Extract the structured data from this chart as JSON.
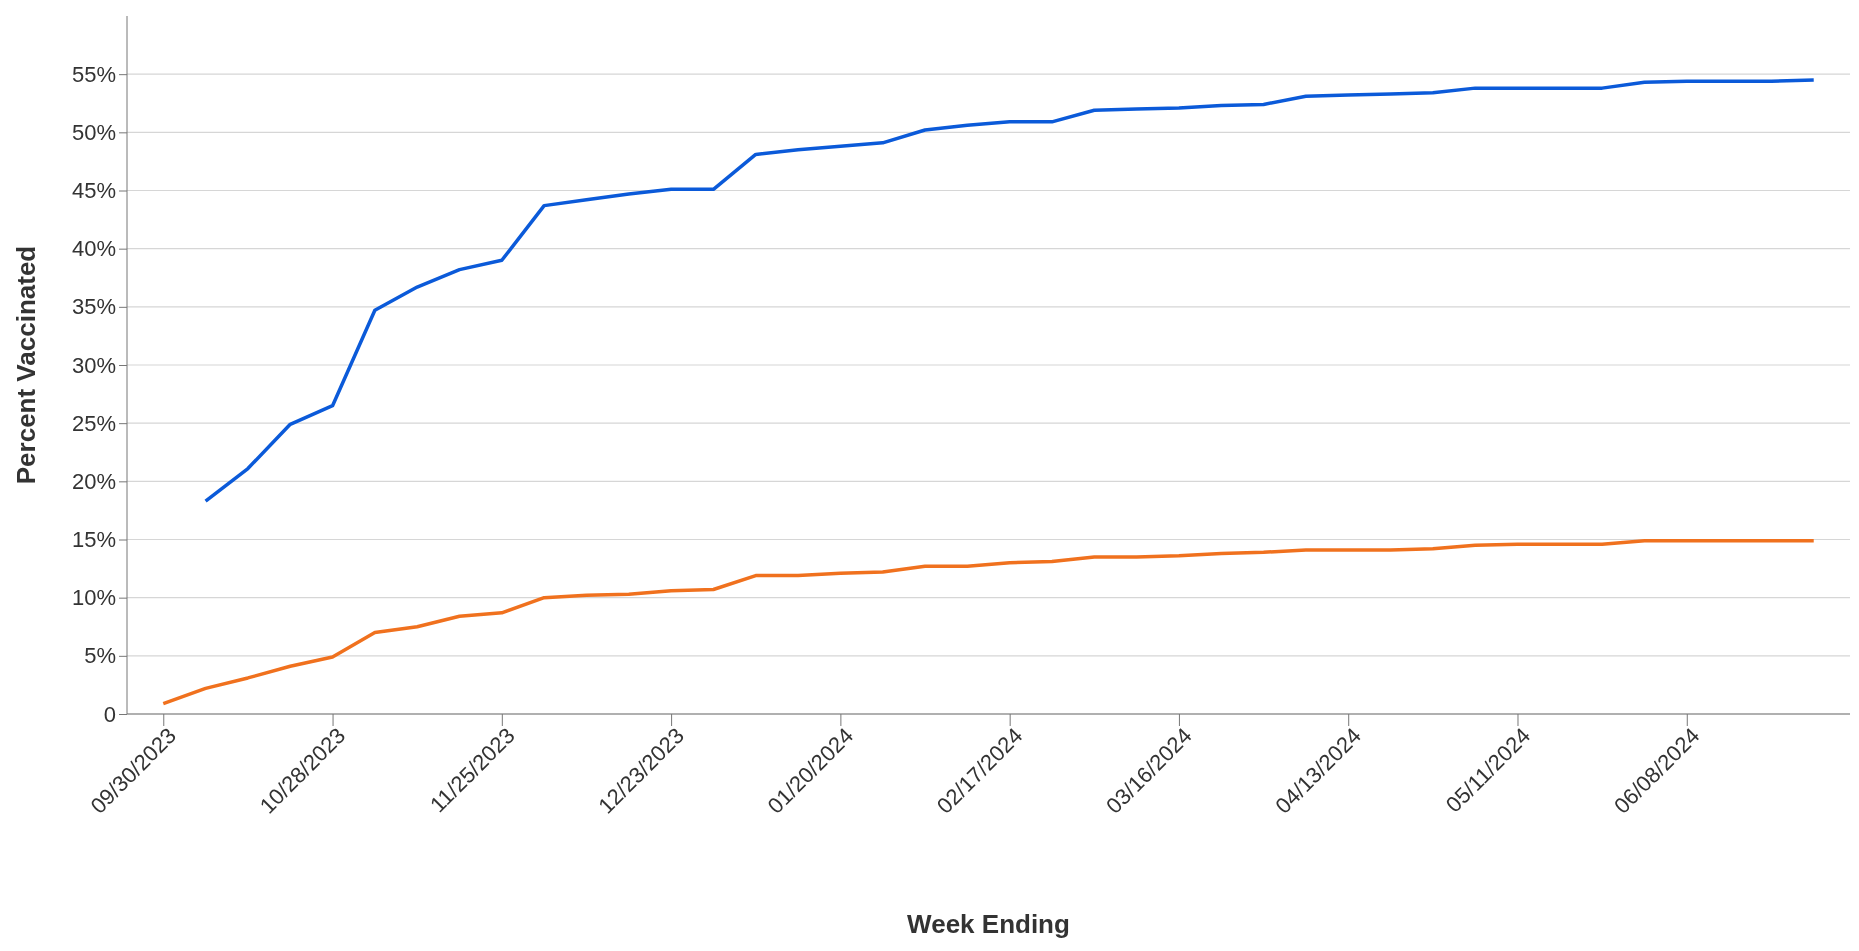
{
  "chart_data": {
    "type": "line",
    "xlabel": "Week Ending",
    "ylabel": "Percent Vaccinated",
    "x": [
      "2023-09-30",
      "2023-10-07",
      "2023-10-14",
      "2023-10-21",
      "2023-10-28",
      "2023-11-04",
      "2023-11-11",
      "2023-11-18",
      "2023-11-25",
      "2023-12-02",
      "2023-12-09",
      "2023-12-16",
      "2023-12-23",
      "2023-12-30",
      "2024-01-06",
      "2024-01-13",
      "2024-01-20",
      "2024-01-27",
      "2024-02-03",
      "2024-02-10",
      "2024-02-17",
      "2024-02-24",
      "2024-03-02",
      "2024-03-09",
      "2024-03-16",
      "2024-03-23",
      "2024-03-30",
      "2024-04-06",
      "2024-04-13",
      "2024-04-20",
      "2024-04-27",
      "2024-05-04",
      "2024-05-11",
      "2024-05-18",
      "2024-05-25",
      "2024-06-01",
      "2024-06-08",
      "2024-06-15",
      "2024-06-22",
      "2024-06-29"
    ],
    "series": [
      {
        "color": "#0b5ad9",
        "values": [
          null,
          18.3,
          21.1,
          24.9,
          26.5,
          34.7,
          36.7,
          38.2,
          39.0,
          43.7,
          44.2,
          44.7,
          45.1,
          45.1,
          48.1,
          48.5,
          48.8,
          49.1,
          50.2,
          50.6,
          50.9,
          50.9,
          51.9,
          52.0,
          52.1,
          52.3,
          52.4,
          53.1,
          53.2,
          53.3,
          53.4,
          53.8,
          53.8,
          53.8,
          53.8,
          54.3,
          54.4,
          54.4,
          54.4,
          54.5
        ]
      },
      {
        "color": "#f0711e",
        "values": [
          0.9,
          2.2,
          3.1,
          4.1,
          4.9,
          7.0,
          7.5,
          8.4,
          8.7,
          10.0,
          10.2,
          10.3,
          10.6,
          10.7,
          11.9,
          11.9,
          12.1,
          12.2,
          12.7,
          12.7,
          13.0,
          13.1,
          13.5,
          13.5,
          13.6,
          13.8,
          13.9,
          14.1,
          14.1,
          14.1,
          14.2,
          14.5,
          14.6,
          14.6,
          14.6,
          14.9,
          14.9,
          14.9,
          14.9,
          14.9
        ]
      }
    ],
    "xlim": [
      "2023-09-24",
      "2024-07-05"
    ],
    "xticks": [
      {
        "value": "2023-09-30",
        "label": "09/30/2023"
      },
      {
        "value": "2023-10-28",
        "label": "10/28/2023"
      },
      {
        "value": "2023-11-25",
        "label": "11/25/2023"
      },
      {
        "value": "2023-12-23",
        "label": "12/23/2023"
      },
      {
        "value": "2024-01-20",
        "label": "01/20/2024"
      },
      {
        "value": "2024-02-17",
        "label": "02/17/2024"
      },
      {
        "value": "2024-03-16",
        "label": "03/16/2024"
      },
      {
        "value": "2024-04-13",
        "label": "04/13/2024"
      },
      {
        "value": "2024-05-11",
        "label": "05/11/2024"
      },
      {
        "value": "2024-06-08",
        "label": "06/08/2024"
      }
    ],
    "ylim": [
      0,
      60
    ],
    "yticks": [
      {
        "value": 0,
        "label": "0"
      },
      {
        "value": 5,
        "label": "5%"
      },
      {
        "value": 10,
        "label": "10%"
      },
      {
        "value": 15,
        "label": "15%"
      },
      {
        "value": 20,
        "label": "20%"
      },
      {
        "value": 25,
        "label": "25%"
      },
      {
        "value": 30,
        "label": "30%"
      },
      {
        "value": 35,
        "label": "35%"
      },
      {
        "value": 40,
        "label": "40%"
      },
      {
        "value": 45,
        "label": "45%"
      },
      {
        "value": 50,
        "label": "50%"
      },
      {
        "value": 55,
        "label": "55%"
      }
    ],
    "grid": "y",
    "marker": "none",
    "line_style": "solid"
  }
}
